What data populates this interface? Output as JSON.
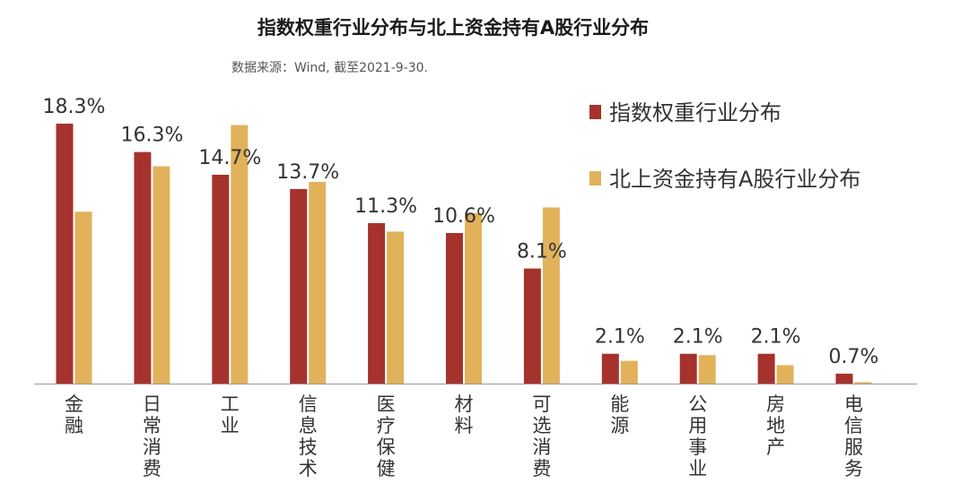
{
  "colors": {
    "index": "#A5322D",
    "northbound": "#E2B25B",
    "axis": "#999999"
  },
  "chart_data": {
    "type": "bar",
    "title": "指数权重行业分布与北上资金持有A股行业分布",
    "subtitle": "数据来源：Wind, 截至2021-9-30.",
    "categories": [
      "金融",
      "日常消费",
      "工业",
      "信息技术",
      "医疗保健",
      "材料",
      "可选消费",
      "能源",
      "公用事业",
      "房地产",
      "电信服务"
    ],
    "series": [
      {
        "name": "指数权重行业分布",
        "values": [
          18.3,
          16.3,
          14.7,
          13.7,
          11.3,
          10.6,
          8.1,
          2.1,
          2.1,
          2.1,
          0.7
        ]
      },
      {
        "name": "北上资金持有A股行业分布",
        "values": [
          12.1,
          15.3,
          18.2,
          14.2,
          10.7,
          12.0,
          12.4,
          1.6,
          2.0,
          1.3,
          0.1
        ]
      }
    ],
    "data_labels": [
      "18.3%",
      "16.3%",
      "14.7%",
      "13.7%",
      "11.3%",
      "10.6%",
      "8.1%",
      "2.1%",
      "2.1%",
      "2.1%",
      "0.7%"
    ],
    "ylim": [
      0,
      20
    ],
    "legend": "right",
    "grid": false
  }
}
